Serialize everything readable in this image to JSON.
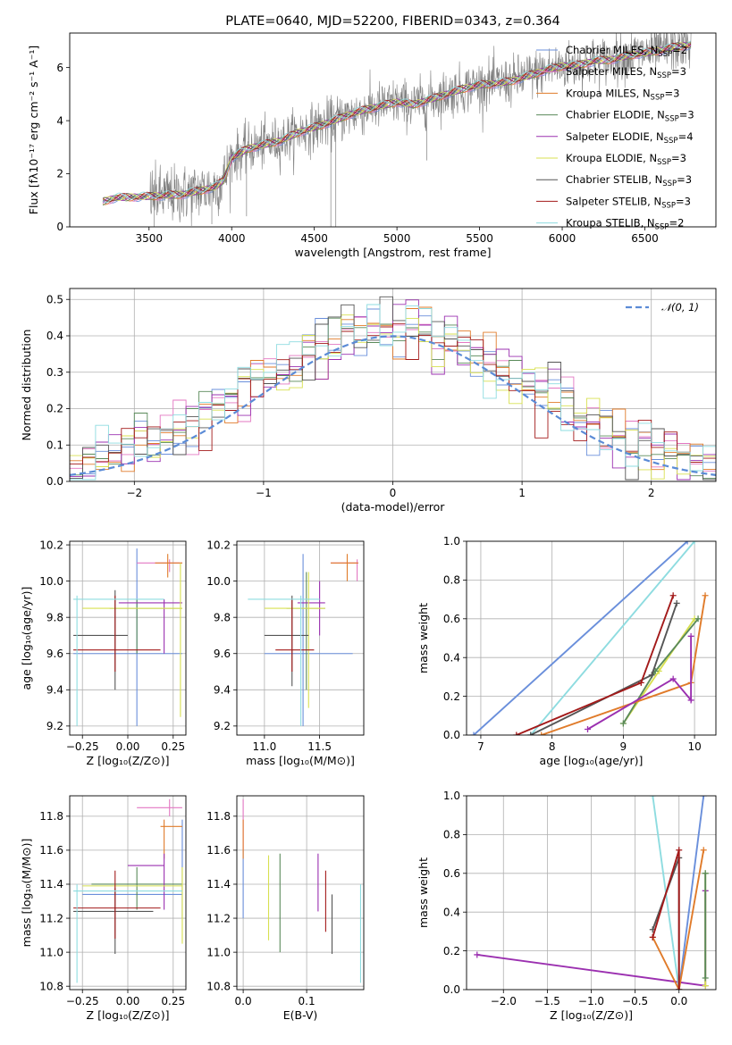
{
  "chart_data": [
    {
      "id": "spectrum",
      "type": "line",
      "title": "PLATE=0640, MJD=52200, FIBERID=0343, z=0.364",
      "xlabel": "wavelength [Angstrom, rest frame]",
      "ylabel": "Flux [fλ10⁻¹⁷ erg cm⁻² s⁻¹ A⁻¹]",
      "xlim": [
        3020,
        6930
      ],
      "ylim": [
        0,
        7.3
      ],
      "xticks": [
        3500,
        4000,
        4500,
        5000,
        5500,
        6000,
        6500
      ],
      "yticks": [
        0,
        2,
        4,
        6
      ],
      "grid": false,
      "legend_position": "upper-right",
      "data_color": "#808080",
      "continuum": {
        "x": [
          3220,
          3300,
          3400,
          3500,
          3600,
          3700,
          3800,
          3900,
          3950,
          4000,
          4100,
          4200,
          4300,
          4400,
          4500,
          4600,
          4700,
          4800,
          4900,
          5000,
          5100,
          5200,
          5300,
          5400,
          5500,
          5600,
          5700,
          5800,
          5900,
          6000,
          6100,
          6200,
          6300,
          6400,
          6500,
          6600,
          6700,
          6780
        ],
        "y": [
          0.95,
          1.1,
          1.12,
          1.15,
          1.18,
          1.22,
          1.35,
          1.5,
          1.75,
          2.6,
          2.95,
          3.1,
          3.25,
          3.55,
          3.75,
          3.95,
          4.2,
          4.4,
          4.55,
          4.7,
          4.6,
          4.8,
          5.0,
          5.2,
          5.35,
          5.4,
          5.5,
          5.7,
          5.9,
          6.05,
          6.1,
          6.25,
          6.3,
          6.45,
          6.55,
          6.65,
          6.8,
          6.85
        ]
      },
      "legend": [
        {
          "label": "Chabrier MILES, N",
          "sub": "SSP",
          "suffix": "=2",
          "color": "#6a8fdb"
        },
        {
          "label": "Salpeter MILES, N",
          "sub": "SSP",
          "suffix": "=3",
          "color": "#e377c2"
        },
        {
          "label": "Kroupa MILES, N",
          "sub": "SSP",
          "suffix": "=3",
          "color": "#e07b2a"
        },
        {
          "label": "Chabrier ELODIE, N",
          "sub": "SSP",
          "suffix": "=3",
          "color": "#5a8a5a"
        },
        {
          "label": "Salpeter ELODIE, N",
          "sub": "SSP",
          "suffix": "=4",
          "color": "#9b30b0"
        },
        {
          "label": "Kroupa ELODIE, N",
          "sub": "SSP",
          "suffix": "=3",
          "color": "#d8e050"
        },
        {
          "label": "Chabrier STELIB, N",
          "sub": "SSP",
          "suffix": "=3",
          "color": "#555555"
        },
        {
          "label": "Salpeter STELIB, N",
          "sub": "SSP",
          "suffix": "=3",
          "color": "#a31a1a"
        },
        {
          "label": "Kroupa STELIB, N",
          "sub": "SSP",
          "suffix": "=2",
          "color": "#8edce0"
        }
      ]
    },
    {
      "id": "residuals",
      "type": "line",
      "xlabel": "(data-model)/error",
      "ylabel": "Normed distribution",
      "xlim": [
        -2.5,
        2.5
      ],
      "ylim": [
        0,
        0.53
      ],
      "xticks": [
        -2,
        -1,
        0,
        1,
        2
      ],
      "yticks": [
        0.0,
        0.1,
        0.2,
        0.3,
        0.4,
        0.5
      ],
      "grid": true,
      "legend_position": "upper-right",
      "gaussian_label": "𝒩(0, 1)",
      "gaussian_color": "#5b8bd6",
      "bin_width": 0.1,
      "bin_start": -2.5
    },
    {
      "id": "age-vs-Z",
      "type": "scatter",
      "xlabel": "Z [log₁₀(Z/Z⊙)]",
      "ylabel": "age  [log₁₀(age/yr)]",
      "xlim": [
        -0.32,
        0.32
      ],
      "ylim": [
        9.15,
        10.22
      ],
      "xticks": [
        -0.25,
        0.0,
        0.25
      ],
      "xtick_labels": [
        "−0.25",
        "0.00",
        "0.25"
      ],
      "yticks": [
        9.2,
        9.4,
        9.6,
        9.8,
        10.0,
        10.2
      ],
      "grid": true,
      "points": [
        {
          "color": "#6a8fdb",
          "x": 0.05,
          "xl": -0.3,
          "xh": 0.3,
          "y": 9.6,
          "yl": 9.2,
          "yh": 10.18
        },
        {
          "color": "#e377c2",
          "x": 0.23,
          "xl": 0.05,
          "xh": 0.3,
          "y": 10.1,
          "yl": 10.05,
          "yh": 10.12
        },
        {
          "color": "#e07b2a",
          "x": 0.22,
          "xl": 0.15,
          "xh": 0.3,
          "y": 10.1,
          "yl": 10.02,
          "yh": 10.15
        },
        {
          "color": "#5a8a5a",
          "x": 0.05,
          "xl": -0.1,
          "xh": 0.3,
          "y": 9.85,
          "yl": 9.6,
          "yh": 9.9
        },
        {
          "color": "#9b30b0",
          "x": 0.2,
          "xl": -0.05,
          "xh": 0.3,
          "y": 9.88,
          "yl": 9.6,
          "yh": 9.9
        },
        {
          "color": "#d8e050",
          "x": 0.29,
          "xl": -0.25,
          "xh": 0.3,
          "y": 9.85,
          "yl": 9.25,
          "yh": 10.1
        },
        {
          "color": "#555555",
          "x": -0.07,
          "xl": -0.3,
          "xh": 0.0,
          "y": 9.7,
          "yl": 9.4,
          "yh": 9.95
        },
        {
          "color": "#a31a1a",
          "x": -0.07,
          "xl": -0.3,
          "xh": 0.18,
          "y": 9.62,
          "yl": 9.5,
          "yh": 9.92
        },
        {
          "color": "#8edce0",
          "x": -0.28,
          "xl": -0.3,
          "xh": 0.2,
          "y": 9.9,
          "yl": 9.2,
          "yh": 9.92
        }
      ]
    },
    {
      "id": "age-vs-mass",
      "type": "scatter",
      "xlabel": "mass [log₁₀(M/M⊙)]",
      "xlim": [
        10.75,
        11.9
      ],
      "ylim": [
        9.15,
        10.22
      ],
      "xticks": [
        11.0,
        11.5
      ],
      "xtick_labels": [
        "11.0",
        "11.5"
      ],
      "yticks": [
        9.2,
        9.4,
        9.6,
        9.8,
        10.0,
        10.2
      ],
      "grid": true,
      "points": [
        {
          "color": "#6a8fdb",
          "x": 11.35,
          "xl": 11.0,
          "xh": 11.8,
          "y": 9.6,
          "yl": 9.2,
          "yh": 10.15
        },
        {
          "color": "#e377c2",
          "x": 11.84,
          "xl": 11.6,
          "xh": 11.85,
          "y": 10.1,
          "yl": 10.0,
          "yh": 10.12
        },
        {
          "color": "#e07b2a",
          "x": 11.75,
          "xl": 11.6,
          "xh": 11.85,
          "y": 10.1,
          "yl": 10.0,
          "yh": 10.15
        },
        {
          "color": "#5a8a5a",
          "x": 11.38,
          "xl": 11.2,
          "xh": 11.55,
          "y": 9.85,
          "yl": 9.4,
          "yh": 10.05
        },
        {
          "color": "#9b30b0",
          "x": 11.5,
          "xl": 11.3,
          "xh": 11.55,
          "y": 9.88,
          "yl": 9.7,
          "yh": 10.0
        },
        {
          "color": "#d8e050",
          "x": 11.4,
          "xl": 11.0,
          "xh": 11.55,
          "y": 9.85,
          "yl": 9.3,
          "yh": 10.05
        },
        {
          "color": "#555555",
          "x": 11.25,
          "xl": 11.0,
          "xh": 11.4,
          "y": 9.7,
          "yl": 9.42,
          "yh": 9.92
        },
        {
          "color": "#a31a1a",
          "x": 11.25,
          "xl": 11.1,
          "xh": 11.45,
          "y": 9.62,
          "yl": 9.5,
          "yh": 9.9
        },
        {
          "color": "#8edce0",
          "x": 11.33,
          "xl": 10.85,
          "xh": 11.5,
          "y": 9.9,
          "yl": 9.2,
          "yh": 9.92
        }
      ]
    },
    {
      "id": "mass-weight-vs-age",
      "type": "line",
      "xlabel": "age  [log₁₀(age/yr)]",
      "ylabel": "mass weight",
      "xlim": [
        6.8,
        10.3
      ],
      "ylim": [
        0,
        1.0
      ],
      "xticks": [
        7,
        8,
        9,
        10
      ],
      "yticks": [
        0.0,
        0.2,
        0.4,
        0.6,
        0.8,
        1.0
      ],
      "grid": true,
      "series": [
        {
          "color": "#6a8fdb",
          "x": [
            6.9,
            9.9
          ],
          "y": [
            0.0,
            1.0
          ]
        },
        {
          "color": "#8edce0",
          "x": [
            7.7,
            10.0
          ],
          "y": [
            0.0,
            1.0
          ]
        },
        {
          "color": "#d8e050",
          "x": [
            9.0,
            9.5,
            10.0
          ],
          "y": [
            0.06,
            0.33,
            0.6
          ]
        },
        {
          "color": "#5a8a5a",
          "x": [
            9.0,
            9.45,
            10.05
          ],
          "y": [
            0.06,
            0.33,
            0.6
          ]
        },
        {
          "color": "#555555",
          "x": [
            7.7,
            9.4,
            9.75
          ],
          "y": [
            0.0,
            0.31,
            0.68
          ]
        },
        {
          "color": "#a31a1a",
          "x": [
            7.5,
            9.25,
            9.7
          ],
          "y": [
            0.0,
            0.27,
            0.72
          ]
        },
        {
          "color": "#e07b2a",
          "x": [
            7.85,
            9.95,
            10.15
          ],
          "y": [
            0.0,
            0.27,
            0.72
          ]
        },
        {
          "color": "#9b30b0",
          "x": [
            8.5,
            9.7,
            9.95,
            9.95
          ],
          "y": [
            0.03,
            0.29,
            0.18,
            0.51
          ]
        }
      ]
    },
    {
      "id": "mass-vs-Z",
      "type": "scatter",
      "xlabel": "Z [log₁₀(Z/Z⊙)]",
      "ylabel": "mass [log₁₀(M/M⊙)]",
      "xlim": [
        -0.32,
        0.32
      ],
      "ylim": [
        10.78,
        11.92
      ],
      "xticks": [
        -0.25,
        0.0,
        0.25
      ],
      "xtick_labels": [
        "−0.25",
        "0.00",
        "0.25"
      ],
      "yticks": [
        10.8,
        11.0,
        11.2,
        11.4,
        11.6,
        11.8
      ],
      "grid": true,
      "points": [
        {
          "color": "#6a8fdb",
          "x": 0.3,
          "xl": -0.25,
          "xh": 0.3,
          "y": 11.34,
          "yl": 11.2,
          "yh": 11.78
        },
        {
          "color": "#e377c2",
          "x": 0.23,
          "xl": 0.05,
          "xh": 0.3,
          "y": 11.85,
          "yl": 11.8,
          "yh": 11.9
        },
        {
          "color": "#e07b2a",
          "x": 0.2,
          "xl": 0.18,
          "xh": 0.3,
          "y": 11.74,
          "yl": 11.55,
          "yh": 11.78
        },
        {
          "color": "#5a8a5a",
          "x": 0.05,
          "xl": -0.2,
          "xh": 0.3,
          "y": 11.4,
          "yl": 11.25,
          "yh": 11.5
        },
        {
          "color": "#9b30b0",
          "x": 0.2,
          "xl": 0.0,
          "xh": 0.2,
          "y": 11.51,
          "yl": 11.25,
          "yh": 11.58
        },
        {
          "color": "#d8e050",
          "x": 0.3,
          "xl": -0.25,
          "xh": 0.3,
          "y": 11.39,
          "yl": 11.05,
          "yh": 11.5
        },
        {
          "color": "#555555",
          "x": -0.07,
          "xl": -0.3,
          "xh": 0.14,
          "y": 11.24,
          "yl": 10.99,
          "yh": 11.38
        },
        {
          "color": "#a31a1a",
          "x": -0.07,
          "xl": -0.3,
          "xh": 0.18,
          "y": 11.26,
          "yl": 11.08,
          "yh": 11.48
        },
        {
          "color": "#8edce0",
          "x": -0.28,
          "xl": -0.3,
          "xh": 0.3,
          "y": 11.36,
          "yl": 10.82,
          "yh": 11.4
        }
      ]
    },
    {
      "id": "mass-vs-ebv",
      "type": "scatter",
      "xlabel": "E(B-V)",
      "xlim": [
        -0.01,
        0.19
      ],
      "ylim": [
        10.78,
        11.92
      ],
      "xticks": [
        0.0,
        0.1
      ],
      "xtick_labels": [
        "0.0",
        "0.1"
      ],
      "yticks": [
        10.8,
        11.0,
        11.2,
        11.4,
        11.6,
        11.8
      ],
      "grid": true,
      "points": [
        {
          "color": "#6a8fdb",
          "x": 0.0,
          "y": 11.4,
          "yl": 11.2,
          "yh": 11.6
        },
        {
          "color": "#e377c2",
          "x": 0.0,
          "y": 11.7,
          "yl": 11.6,
          "yh": 11.9
        },
        {
          "color": "#e07b2a",
          "x": 0.0,
          "y": 11.65,
          "yl": 11.55,
          "yh": 11.78
        },
        {
          "color": "#d8e050",
          "x": 0.04,
          "y": 11.35,
          "yl": 11.07,
          "yh": 11.57
        },
        {
          "color": "#5a8a5a",
          "x": 0.058,
          "y": 11.3,
          "yl": 11.0,
          "yh": 11.58
        },
        {
          "color": "#9b30b0",
          "x": 0.118,
          "y": 11.4,
          "yl": 11.24,
          "yh": 11.58
        },
        {
          "color": "#a31a1a",
          "x": 0.13,
          "y": 11.3,
          "yl": 11.12,
          "yh": 11.48
        },
        {
          "color": "#555555",
          "x": 0.14,
          "y": 11.2,
          "yl": 10.99,
          "yh": 11.34
        },
        {
          "color": "#8edce0",
          "x": 0.185,
          "y": 11.1,
          "yl": 10.82,
          "yh": 11.4
        }
      ]
    },
    {
      "id": "mass-weight-vs-Z",
      "type": "line",
      "xlabel": "Z [log₁₀(Z/Z⊙)]",
      "ylabel": "mass weight",
      "xlim": [
        -2.42,
        0.42
      ],
      "ylim": [
        0,
        1.0
      ],
      "xticks": [
        -2.0,
        -1.5,
        -1.0,
        -0.5,
        0.0
      ],
      "xtick_labels": [
        "−2.0",
        "−1.5",
        "−1.0",
        "−0.5",
        "0.0"
      ],
      "yticks": [
        0.0,
        0.2,
        0.4,
        0.6,
        0.8,
        1.0
      ],
      "grid": true,
      "series": [
        {
          "color": "#9b30b0",
          "x": [
            -2.3,
            0.3,
            0.3
          ],
          "y": [
            0.18,
            0.02,
            0.51
          ]
        },
        {
          "color": "#8edce0",
          "x": [
            -0.3,
            0.0
          ],
          "y": [
            1.0,
            0.0
          ]
        },
        {
          "color": "#6a8fdb",
          "x": [
            0.0,
            0.28
          ],
          "y": [
            0.0,
            1.0
          ]
        },
        {
          "color": "#e07b2a",
          "x": [
            -0.3,
            0.0,
            0.28
          ],
          "y": [
            0.27,
            0.0,
            0.72
          ]
        },
        {
          "color": "#555555",
          "x": [
            -0.3,
            0.0,
            0.0
          ],
          "y": [
            0.31,
            0.68,
            0.0
          ]
        },
        {
          "color": "#a31a1a",
          "x": [
            -0.3,
            0.0,
            0.0
          ],
          "y": [
            0.27,
            0.72,
            0.0
          ]
        },
        {
          "color": "#d8e050",
          "x": [
            0.3,
            0.3
          ],
          "y": [
            0.02,
            0.6
          ]
        },
        {
          "color": "#5a8a5a",
          "x": [
            0.3,
            0.3
          ],
          "y": [
            0.06,
            0.6
          ]
        }
      ]
    }
  ]
}
